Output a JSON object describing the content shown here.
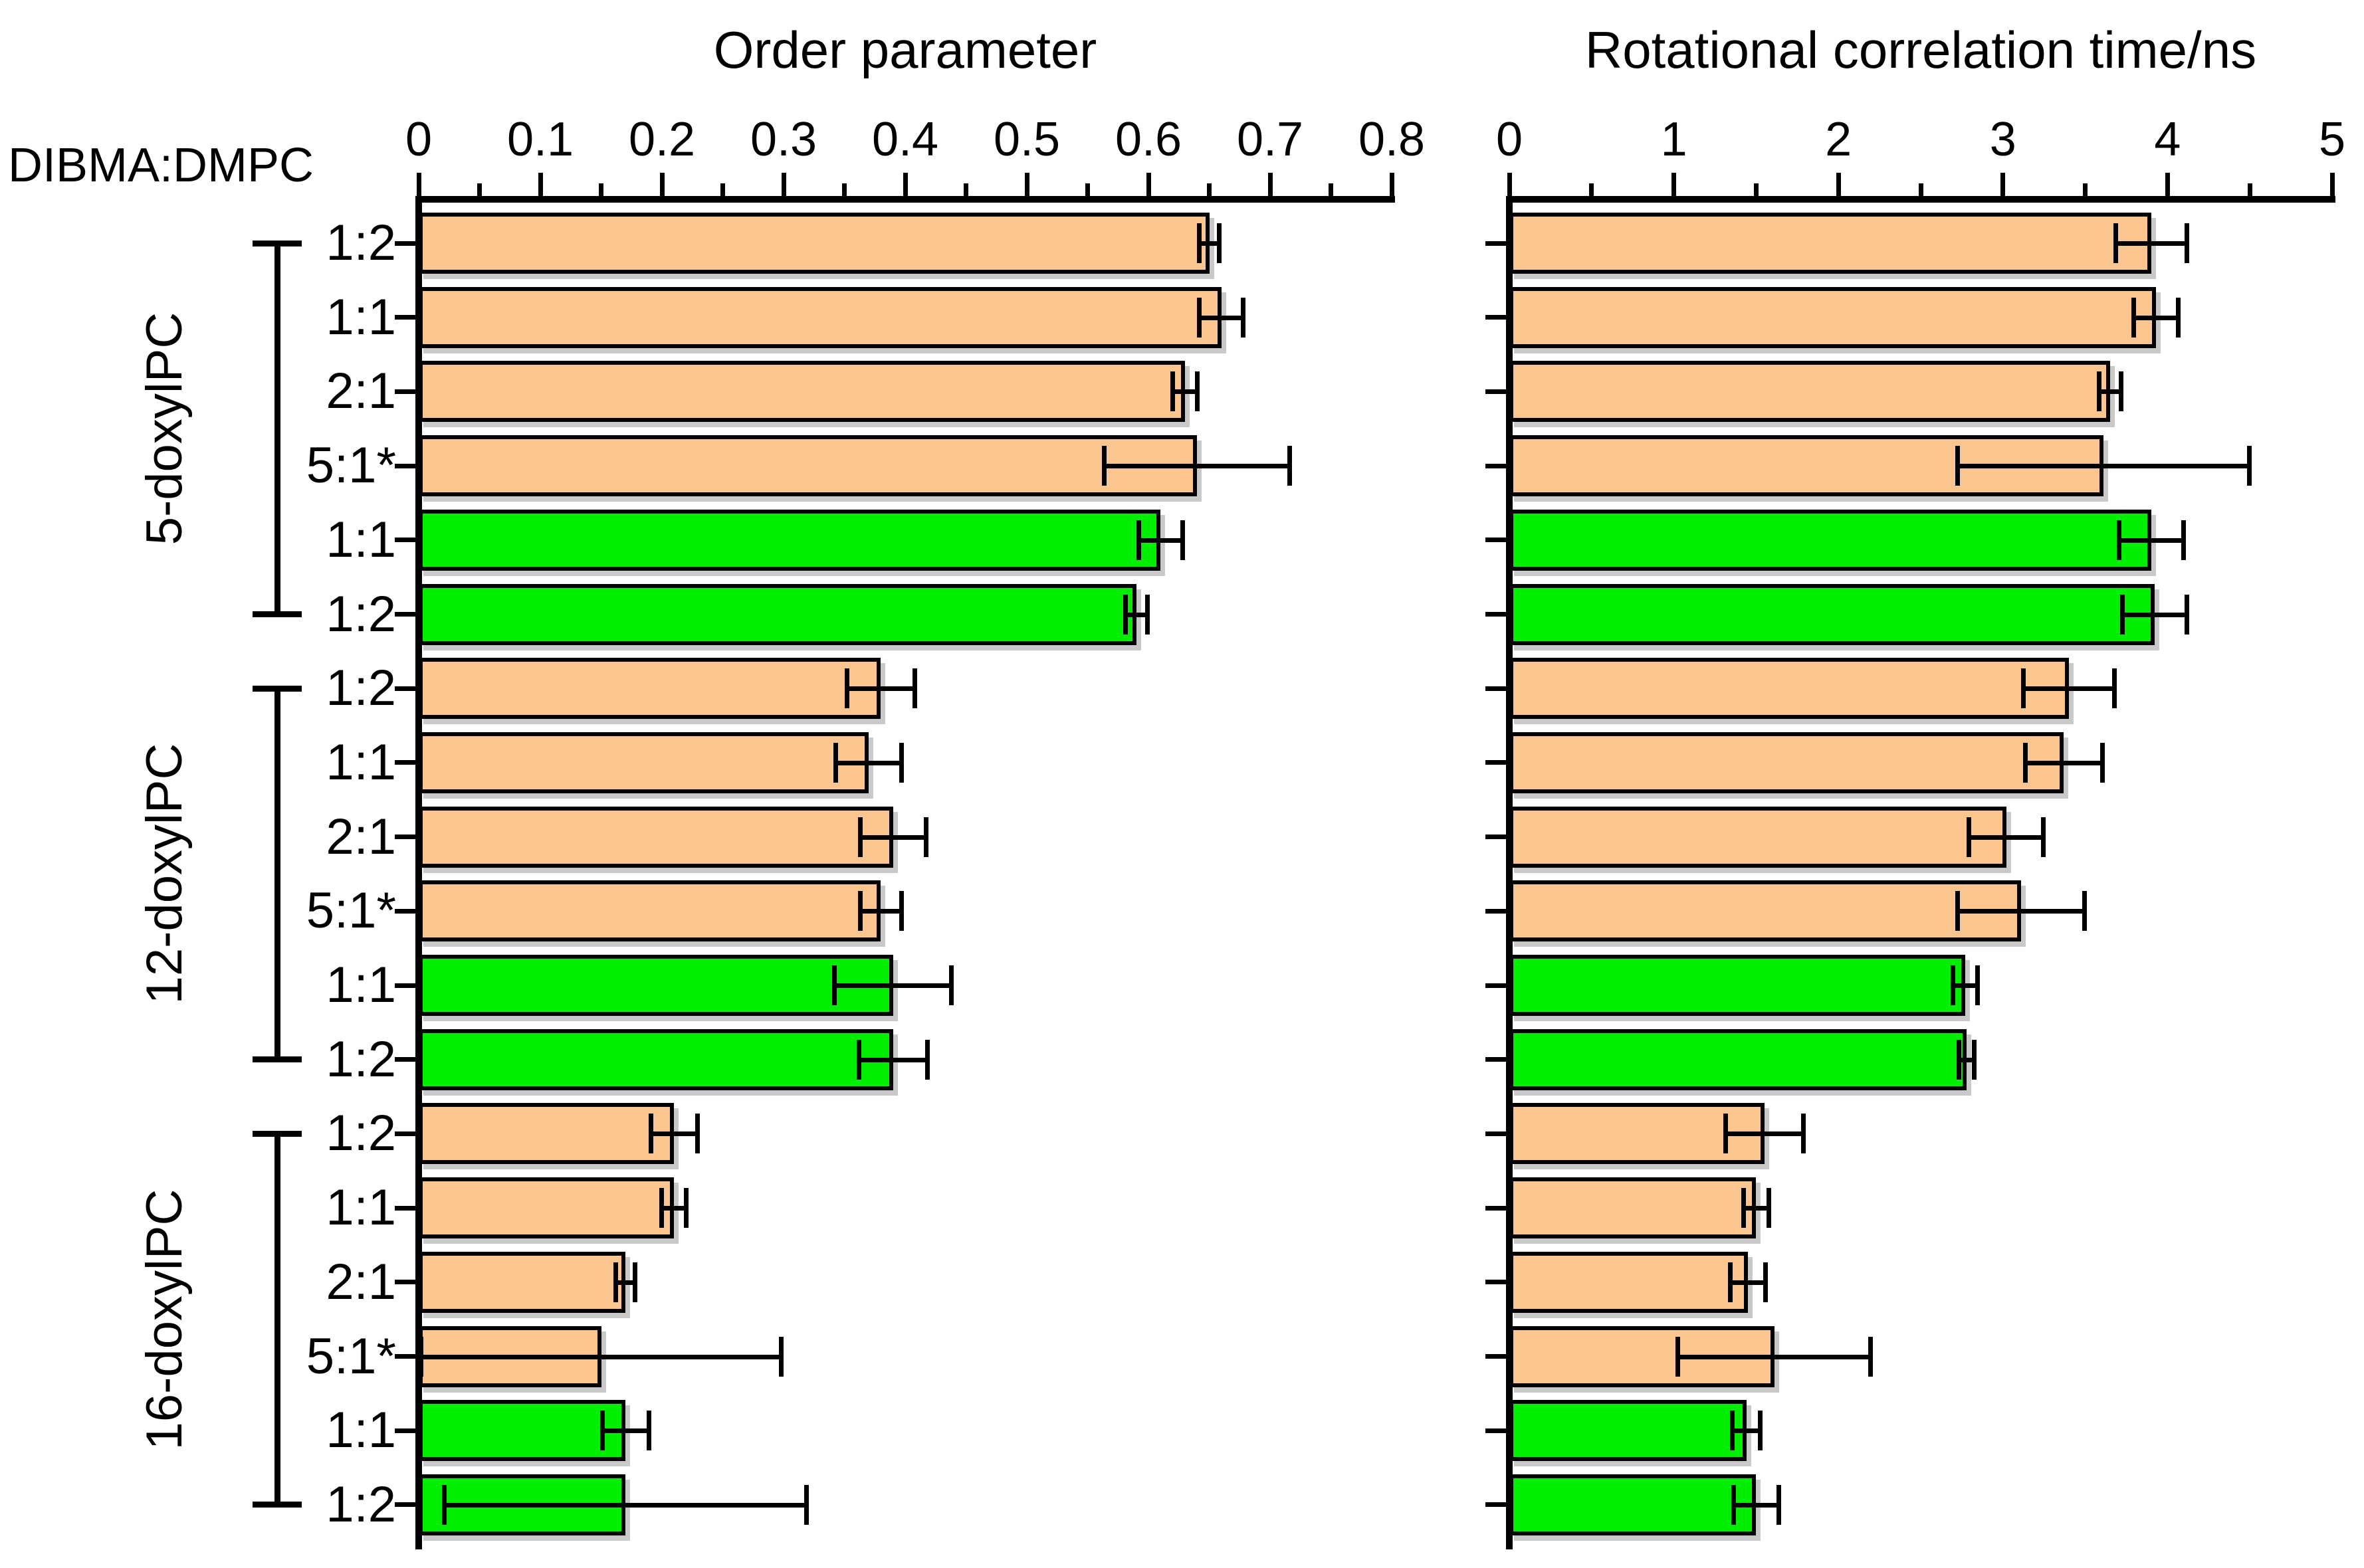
{
  "chart_data": {
    "type": "bar",
    "orientation": "horizontal",
    "row_group_header": "DIBMA:DMPC",
    "colors": {
      "orange": "#FAC58F",
      "green": "#00EE00",
      "bar_border": "#000000",
      "error_bar": "#000000"
    },
    "legend": "none",
    "grid": false,
    "panels": [
      {
        "title": "Order parameter",
        "xlim": [
          0,
          0.8
        ],
        "ticks": {
          "values": [
            0,
            0.1,
            0.2,
            0.3,
            0.4,
            0.5,
            0.6,
            0.7,
            0.8
          ],
          "labels": [
            "0",
            "0.1",
            "0.2",
            "0.3",
            "0.4",
            "0.5",
            "0.6",
            "0.7",
            "0.8"
          ]
        },
        "minor_step": 0.05,
        "value_key": "order_parameter",
        "error_key": "order_parameter_err"
      },
      {
        "title": "Rotational correlation time/ns",
        "xlim": [
          0,
          5
        ],
        "ticks": {
          "values": [
            0,
            1,
            2,
            3,
            4,
            5
          ],
          "labels": [
            "0",
            "1",
            "2",
            "3",
            "4",
            "5"
          ]
        },
        "minor_step": 0.5,
        "value_key": "rot_corr_time_ns",
        "error_key": "rot_corr_time_err"
      }
    ],
    "groups": [
      {
        "label": "5-doxylPC",
        "rows": [
          {
            "ratio": "1:2",
            "color": "orange",
            "order_parameter": 0.65,
            "order_parameter_err": 0.01,
            "rot_corr_time_ns": 3.9,
            "rot_corr_time_err": 0.23
          },
          {
            "ratio": "1:1",
            "color": "orange",
            "order_parameter": 0.66,
            "order_parameter_err": 0.02,
            "rot_corr_time_ns": 3.93,
            "rot_corr_time_err": 0.15
          },
          {
            "ratio": "2:1",
            "color": "orange",
            "order_parameter": 0.63,
            "order_parameter_err": 0.012,
            "rot_corr_time_ns": 3.65,
            "rot_corr_time_err": 0.08
          },
          {
            "ratio": "5:1*",
            "color": "orange",
            "order_parameter": 0.64,
            "order_parameter_err": 0.078,
            "rot_corr_time_ns": 3.61,
            "rot_corr_time_err": 0.9
          },
          {
            "ratio": "1:1",
            "color": "green",
            "order_parameter": 0.61,
            "order_parameter_err": 0.02,
            "rot_corr_time_ns": 3.9,
            "rot_corr_time_err": 0.21
          },
          {
            "ratio": "1:2",
            "color": "green",
            "order_parameter": 0.59,
            "order_parameter_err": 0.011,
            "rot_corr_time_ns": 3.92,
            "rot_corr_time_err": 0.21
          }
        ]
      },
      {
        "label": "12-doxylPC",
        "rows": [
          {
            "ratio": "1:2",
            "color": "orange",
            "order_parameter": 0.38,
            "order_parameter_err": 0.03,
            "rot_corr_time_ns": 3.4,
            "rot_corr_time_err": 0.29
          },
          {
            "ratio": "1:1",
            "color": "orange",
            "order_parameter": 0.37,
            "order_parameter_err": 0.029,
            "rot_corr_time_ns": 3.37,
            "rot_corr_time_err": 0.25
          },
          {
            "ratio": "2:1",
            "color": "orange",
            "order_parameter": 0.39,
            "order_parameter_err": 0.029,
            "rot_corr_time_ns": 3.02,
            "rot_corr_time_err": 0.24
          },
          {
            "ratio": "5:1*",
            "color": "orange",
            "order_parameter": 0.38,
            "order_parameter_err": 0.019,
            "rot_corr_time_ns": 3.11,
            "rot_corr_time_err": 0.4
          },
          {
            "ratio": "1:1",
            "color": "green",
            "order_parameter": 0.39,
            "order_parameter_err": 0.05,
            "rot_corr_time_ns": 2.77,
            "rot_corr_time_err": 0.09
          },
          {
            "ratio": "1:2",
            "color": "green",
            "order_parameter": 0.39,
            "order_parameter_err": 0.03,
            "rot_corr_time_ns": 2.78,
            "rot_corr_time_err": 0.06
          }
        ]
      },
      {
        "label": "16-doxylPC",
        "rows": [
          {
            "ratio": "1:2",
            "color": "orange",
            "order_parameter": 0.21,
            "order_parameter_err": 0.021,
            "rot_corr_time_ns": 1.55,
            "rot_corr_time_err": 0.25
          },
          {
            "ratio": "1:1",
            "color": "orange",
            "order_parameter": 0.21,
            "order_parameter_err": 0.012,
            "rot_corr_time_ns": 1.5,
            "rot_corr_time_err": 0.09
          },
          {
            "ratio": "2:1",
            "color": "orange",
            "order_parameter": 0.17,
            "order_parameter_err": 0.01,
            "rot_corr_time_ns": 1.45,
            "rot_corr_time_err": 0.12
          },
          {
            "ratio": "5:1*",
            "color": "orange",
            "order_parameter": 0.15,
            "order_parameter_err": 0.15,
            "rot_corr_time_ns": 1.61,
            "rot_corr_time_err": 0.6
          },
          {
            "ratio": "1:1",
            "color": "green",
            "order_parameter": 0.17,
            "order_parameter_err": 0.021,
            "rot_corr_time_ns": 1.44,
            "rot_corr_time_err": 0.1
          },
          {
            "ratio": "1:2",
            "color": "green",
            "order_parameter": 0.17,
            "order_parameter_err": 0.151,
            "rot_corr_time_ns": 1.5,
            "rot_corr_time_err": 0.15
          }
        ]
      }
    ]
  }
}
